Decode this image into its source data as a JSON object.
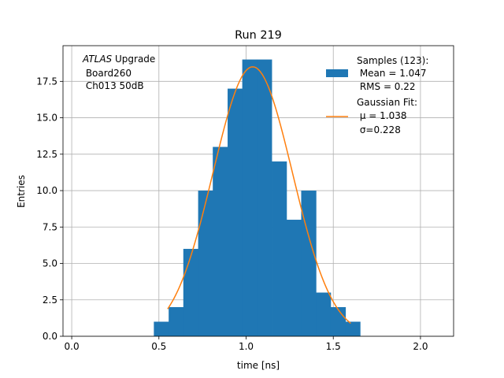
{
  "chart_data": {
    "type": "bar",
    "title": "Run 219",
    "xlabel": "time [ns]",
    "ylabel": "Entries",
    "xlim": [
      -0.05,
      2.19
    ],
    "ylim": [
      0,
      19.95
    ],
    "grid": true,
    "x_ticks": [
      0.0,
      0.5,
      1.0,
      1.5,
      2.0
    ],
    "x_tick_labels": [
      "0.0",
      "0.5",
      "1.0",
      "1.5",
      "2.0"
    ],
    "y_ticks": [
      0.0,
      2.5,
      5.0,
      7.5,
      10.0,
      12.5,
      15.0,
      17.5
    ],
    "y_tick_labels": [
      "0.0",
      "2.5",
      "5.0",
      "7.5",
      "10.0",
      "12.5",
      "15.0",
      "17.5"
    ],
    "annotation": {
      "italic": "ATLAS",
      "rest": " Upgrade",
      "line2": " Board260",
      "line3": " Ch013 50dB"
    },
    "histogram": {
      "name": "Samples (123):",
      "color": "#1f77b4",
      "bins": [
        {
          "x0": 0.471,
          "x1": 0.556,
          "count": 1
        },
        {
          "x0": 0.556,
          "x1": 0.64,
          "count": 2
        },
        {
          "x0": 0.64,
          "x1": 0.725,
          "count": 6
        },
        {
          "x0": 0.725,
          "x1": 0.809,
          "count": 10
        },
        {
          "x0": 0.809,
          "x1": 0.894,
          "count": 13
        },
        {
          "x0": 0.894,
          "x1": 0.978,
          "count": 17
        },
        {
          "x0": 0.978,
          "x1": 1.063,
          "count": 19
        },
        {
          "x0": 1.063,
          "x1": 1.147,
          "count": 19
        },
        {
          "x0": 1.147,
          "x1": 1.232,
          "count": 12
        },
        {
          "x0": 1.232,
          "x1": 1.316,
          "count": 8
        },
        {
          "x0": 1.316,
          "x1": 1.401,
          "count": 10
        },
        {
          "x0": 1.401,
          "x1": 1.485,
          "count": 3
        },
        {
          "x0": 1.485,
          "x1": 1.57,
          "count": 2
        },
        {
          "x0": 1.57,
          "x1": 1.654,
          "count": 1
        }
      ]
    },
    "fit": {
      "name": "Gaussian Fit:",
      "color": "#ff7f0e",
      "mu": 1.038,
      "sigma": 0.228,
      "amplitude": 18.5,
      "x_range": [
        0.55,
        1.6
      ]
    },
    "legend": {
      "placement": "upper right",
      "hist_lines": [
        "Samples (123):",
        " Mean = 1.047",
        " RMS = 0.22"
      ],
      "fit_lines": [
        "Gaussian Fit:",
        " μ = 1.038",
        " σ=0.228"
      ]
    }
  }
}
